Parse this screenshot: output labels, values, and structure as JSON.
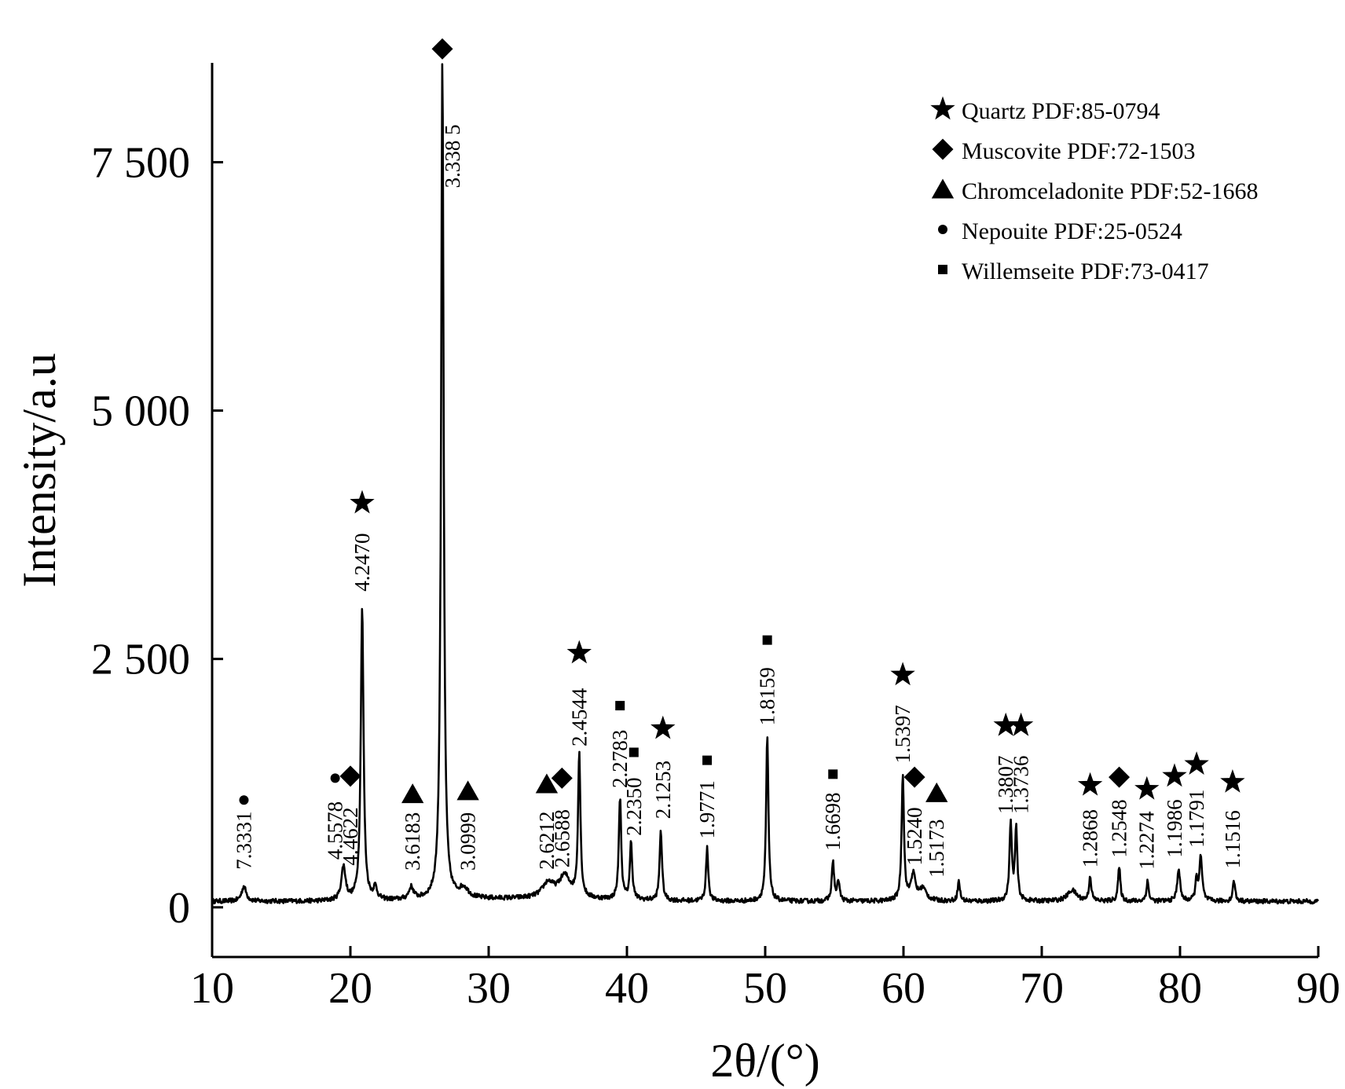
{
  "chart_data": {
    "type": "line",
    "xlabel": "2θ/(°)",
    "ylabel": "Intensity/a.u",
    "xlim": [
      10,
      90
    ],
    "ylim": [
      -500,
      8500
    ],
    "x_ticks": [
      10,
      20,
      30,
      40,
      50,
      60,
      70,
      80,
      90
    ],
    "x_tick_labels": [
      "10",
      "20",
      "30",
      "40",
      "50",
      "60",
      "70",
      "80",
      "90"
    ],
    "y_ticks": [
      0,
      2500,
      5000,
      7500
    ],
    "y_tick_labels": [
      "0",
      "2 500",
      "5 000",
      "7 500"
    ],
    "grid": false,
    "legend_position": "top-right",
    "legend": [
      {
        "marker": "star",
        "label": "Quartz PDF:85-0794"
      },
      {
        "marker": "diamond",
        "label": "Muscovite PDF:72-1503"
      },
      {
        "marker": "triangle",
        "label": "Chromceladonite PDF:52-1668"
      },
      {
        "marker": "circle",
        "label": "Nepouite PDF:25-0524"
      },
      {
        "marker": "square",
        "label": "Willemseite PDF:73-0417"
      }
    ],
    "baseline": 60,
    "peaks": [
      {
        "x": 12.3,
        "y": 150,
        "w": 0.2
      },
      {
        "x": 19.5,
        "y": 340,
        "w": 0.18
      },
      {
        "x": 20.85,
        "y": 2950,
        "w": 0.12
      },
      {
        "x": 21.8,
        "y": 120,
        "w": 0.15
      },
      {
        "x": 24.4,
        "y": 120,
        "w": 0.2
      },
      {
        "x": 26.65,
        "y": 8450,
        "w": 0.11
      },
      {
        "x": 28.2,
        "y": 100,
        "w": 0.4
      },
      {
        "x": 34.3,
        "y": 150,
        "w": 0.5
      },
      {
        "x": 35.5,
        "y": 220,
        "w": 0.5
      },
      {
        "x": 36.55,
        "y": 1450,
        "w": 0.1
      },
      {
        "x": 39.5,
        "y": 1030,
        "w": 0.1
      },
      {
        "x": 40.3,
        "y": 580,
        "w": 0.1
      },
      {
        "x": 42.45,
        "y": 710,
        "w": 0.1
      },
      {
        "x": 45.8,
        "y": 530,
        "w": 0.1
      },
      {
        "x": 50.15,
        "y": 1660,
        "w": 0.1
      },
      {
        "x": 54.9,
        "y": 400,
        "w": 0.1
      },
      {
        "x": 55.3,
        "y": 200,
        "w": 0.1
      },
      {
        "x": 59.95,
        "y": 1280,
        "w": 0.1
      },
      {
        "x": 60.7,
        "y": 260,
        "w": 0.2
      },
      {
        "x": 61.4,
        "y": 120,
        "w": 0.3
      },
      {
        "x": 64.0,
        "y": 200,
        "w": 0.1
      },
      {
        "x": 67.75,
        "y": 780,
        "w": 0.1
      },
      {
        "x": 68.15,
        "y": 720,
        "w": 0.1
      },
      {
        "x": 72.2,
        "y": 110,
        "w": 0.4
      },
      {
        "x": 73.5,
        "y": 240,
        "w": 0.1
      },
      {
        "x": 75.6,
        "y": 340,
        "w": 0.1
      },
      {
        "x": 77.65,
        "y": 200,
        "w": 0.1
      },
      {
        "x": 79.9,
        "y": 330,
        "w": 0.12
      },
      {
        "x": 81.2,
        "y": 210,
        "w": 0.1
      },
      {
        "x": 81.5,
        "y": 430,
        "w": 0.12
      },
      {
        "x": 83.9,
        "y": 210,
        "w": 0.1
      }
    ],
    "annotations": [
      {
        "x": 12.3,
        "y": 380,
        "text": "7.3331",
        "marker": "circle",
        "marker_y": 1080
      },
      {
        "x": 18.9,
        "y": 480,
        "text": "4.5578",
        "marker": "circle",
        "marker_y": 1300
      },
      {
        "x": 20.0,
        "y": 420,
        "text": "4.4622",
        "marker": "diamond",
        "marker_y": 1320
      },
      {
        "x": 20.85,
        "y": 3180,
        "text": "4.2470",
        "marker": "star",
        "marker_y": 4070
      },
      {
        "x": 24.5,
        "y": 370,
        "text": "3.6183",
        "marker": "triangle",
        "marker_y": 1140
      },
      {
        "x": 26.65,
        "y": 7880,
        "text": "3.338 5",
        "marker": "diamond",
        "marker_y": 8640,
        "label_side": "right"
      },
      {
        "x": 28.5,
        "y": 370,
        "text": "3.0999",
        "marker": "triangle",
        "marker_y": 1170
      },
      {
        "x": 34.2,
        "y": 380,
        "text": "2.6212",
        "marker": "triangle",
        "marker_y": 1240
      },
      {
        "x": 35.3,
        "y": 400,
        "text": "2.6588",
        "marker": "diamond",
        "marker_y": 1300
      },
      {
        "x": 36.55,
        "y": 1620,
        "text": "2.4544",
        "marker": "star",
        "marker_y": 2560
      },
      {
        "x": 39.5,
        "y": 1200,
        "text": "2.2783",
        "marker": "square",
        "marker_y": 2030
      },
      {
        "x": 40.5,
        "y": 720,
        "text": "2.2350",
        "marker": "square",
        "marker_y": 1560
      },
      {
        "x": 42.6,
        "y": 890,
        "text": "2.1253",
        "marker": "star",
        "marker_y": 1800
      },
      {
        "x": 45.8,
        "y": 690,
        "text": "1.9771",
        "marker": "square",
        "marker_y": 1480
      },
      {
        "x": 50.15,
        "y": 1830,
        "text": "1.8159",
        "marker": "square",
        "marker_y": 2690
      },
      {
        "x": 54.9,
        "y": 570,
        "text": "1.6698",
        "marker": "square",
        "marker_y": 1340
      },
      {
        "x": 59.95,
        "y": 1450,
        "text": "1.5397",
        "marker": "star",
        "marker_y": 2340
      },
      {
        "x": 60.8,
        "y": 420,
        "text": "1.5240",
        "marker": "diamond",
        "marker_y": 1310
      },
      {
        "x": 62.4,
        "y": 300,
        "text": "1.5173",
        "marker": "triangle",
        "marker_y": 1150
      },
      {
        "x": 67.4,
        "y": 940,
        "text": "1.3807",
        "marker": "star",
        "marker_y": 1830
      },
      {
        "x": 68.5,
        "y": 940,
        "text": "1.3736",
        "marker": "star",
        "marker_y": 1830
      },
      {
        "x": 73.5,
        "y": 400,
        "text": "1.2868",
        "marker": "star",
        "marker_y": 1230
      },
      {
        "x": 75.6,
        "y": 500,
        "text": "1.2548",
        "marker": "diamond",
        "marker_y": 1310
      },
      {
        "x": 77.6,
        "y": 380,
        "text": "1.2274",
        "marker": "star",
        "marker_y": 1190
      },
      {
        "x": 79.6,
        "y": 500,
        "text": "1.1986",
        "marker": "star",
        "marker_y": 1320
      },
      {
        "x": 81.2,
        "y": 600,
        "text": "1.1791",
        "marker": "star",
        "marker_y": 1440
      },
      {
        "x": 83.8,
        "y": 390,
        "text": "1.1516",
        "marker": "star",
        "marker_y": 1260
      }
    ]
  }
}
